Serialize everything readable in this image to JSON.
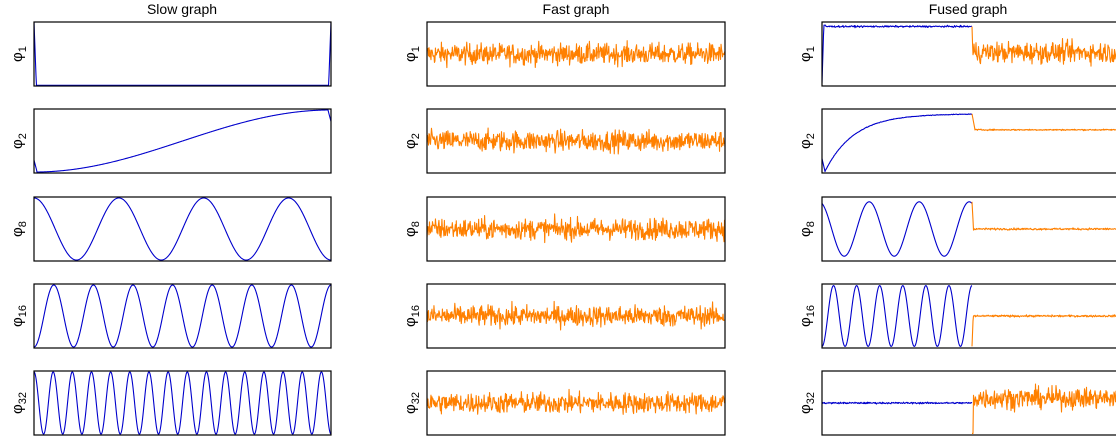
{
  "figure": {
    "columns": [
      "Slow graph",
      "Fast graph",
      "Fused graph"
    ],
    "row_labels": [
      {
        "symbol": "φ",
        "sub": "1"
      },
      {
        "symbol": "φ",
        "sub": "2"
      },
      {
        "symbol": "φ",
        "sub": "8"
      },
      {
        "symbol": "φ",
        "sub": "16"
      },
      {
        "symbol": "φ",
        "sub": "32"
      }
    ]
  },
  "chart_data": {
    "type": "line",
    "layout": "grid of 5 rows x 3 columns of small line plots, no axis ticks",
    "grid": false,
    "colors": {
      "slow": "#0000cc",
      "fast": "#ff8000"
    },
    "x": {
      "range": [
        0,
        1
      ],
      "samples": 600
    },
    "ylim": [
      -1,
      1
    ],
    "panels": [
      {
        "column": "Slow graph",
        "row": "φ1",
        "series": [
          {
            "color": "#0000cc",
            "form": "flat near -1 with sharp spikes to +1 at both ends"
          }
        ]
      },
      {
        "column": "Slow graph",
        "row": "φ2",
        "series": [
          {
            "color": "#0000cc",
            "form": "smooth half-cosine rising from -1 to +1"
          }
        ]
      },
      {
        "column": "Slow graph",
        "row": "φ8",
        "series": [
          {
            "color": "#0000cc",
            "form": "cosine",
            "cycles": 3.5
          }
        ]
      },
      {
        "column": "Slow graph",
        "row": "φ16",
        "series": [
          {
            "color": "#0000cc",
            "form": "cosine",
            "cycles": 7.5
          }
        ]
      },
      {
        "column": "Slow graph",
        "row": "φ32",
        "series": [
          {
            "color": "#0000cc",
            "form": "cosine",
            "cycles": 15.5
          }
        ]
      },
      {
        "column": "Fast graph",
        "row": "φ1",
        "series": [
          {
            "color": "#ff8000",
            "form": "random noise around 0"
          }
        ]
      },
      {
        "column": "Fast graph",
        "row": "φ2",
        "series": [
          {
            "color": "#ff8000",
            "form": "random noise around 0"
          }
        ]
      },
      {
        "column": "Fast graph",
        "row": "φ8",
        "series": [
          {
            "color": "#ff8000",
            "form": "random noise around 0"
          }
        ]
      },
      {
        "column": "Fast graph",
        "row": "φ16",
        "series": [
          {
            "color": "#ff8000",
            "form": "random noise around 0"
          }
        ]
      },
      {
        "column": "Fast graph",
        "row": "φ32",
        "series": [
          {
            "color": "#ff8000",
            "form": "random noise around 0"
          }
        ]
      },
      {
        "column": "Fused graph",
        "row": "φ1",
        "split": 0.5,
        "series": [
          {
            "color": "#0000cc",
            "form": "spike then flat high near +0.9 with small noise",
            "x_range": [
              0,
              0.5
            ]
          },
          {
            "color": "#ff8000",
            "form": "noise around 0",
            "x_range": [
              0.5,
              1
            ]
          }
        ]
      },
      {
        "column": "Fused graph",
        "row": "φ2",
        "split": 0.5,
        "series": [
          {
            "color": "#0000cc",
            "form": "rising saturating curve from -1 to about +0.85",
            "x_range": [
              0,
              0.5
            ]
          },
          {
            "color": "#ff8000",
            "form": "nearly flat around +0.35",
            "x_range": [
              0.5,
              1
            ]
          }
        ]
      },
      {
        "column": "Fused graph",
        "row": "φ8",
        "split": 0.5,
        "series": [
          {
            "color": "#0000cc",
            "form": "cosine",
            "cycles": 3,
            "x_range": [
              0,
              0.5
            ]
          },
          {
            "color": "#ff8000",
            "form": "nearly flat around 0",
            "x_range": [
              0.5,
              1
            ]
          }
        ]
      },
      {
        "column": "Fused graph",
        "row": "φ16",
        "split": 0.5,
        "series": [
          {
            "color": "#0000cc",
            "form": "cosine",
            "cycles": 6.5,
            "x_range": [
              0,
              0.5
            ]
          },
          {
            "color": "#ff8000",
            "form": "nearly flat around 0",
            "x_range": [
              0.5,
              1
            ]
          }
        ]
      },
      {
        "column": "Fused graph",
        "row": "φ32",
        "split": 0.5,
        "series": [
          {
            "color": "#0000cc",
            "form": "nearly flat around 0",
            "x_range": [
              0,
              0.5
            ]
          },
          {
            "color": "#ff8000",
            "form": "random noise",
            "x_range": [
              0.5,
              1
            ]
          }
        ]
      }
    ]
  }
}
